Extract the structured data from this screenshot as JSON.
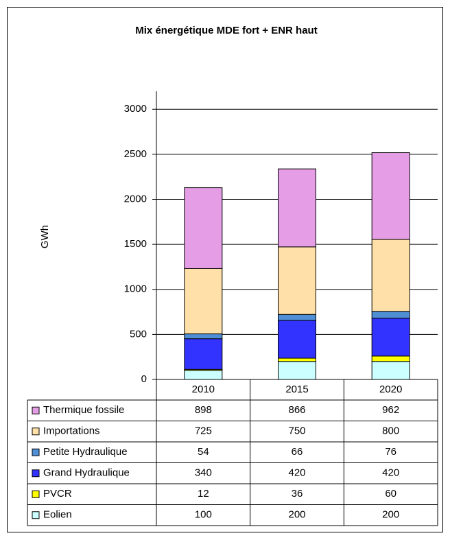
{
  "chart_data": {
    "type": "stacked_bar",
    "title": "Mix énergétique MDE fort + ENR haut",
    "y_label": "GWh",
    "categories": [
      "2010",
      "2015",
      "2020"
    ],
    "series": [
      {
        "name": "Eolien",
        "color": "#ccffff",
        "values": [
          100,
          200,
          200
        ]
      },
      {
        "name": "PVCR",
        "color": "#ffff00",
        "values": [
          12,
          36,
          60
        ]
      },
      {
        "name": "Grand Hydraulique",
        "color": "#3333ff",
        "values": [
          340,
          420,
          420
        ]
      },
      {
        "name": "Petite Hydraulique",
        "color": "#4f8fd6",
        "values": [
          54,
          66,
          76
        ]
      },
      {
        "name": "Importations",
        "color": "#ffe0a8",
        "values": [
          725,
          750,
          800
        ]
      },
      {
        "name": "Thermique fossile",
        "color": "#e59ee6",
        "values": [
          898,
          866,
          962
        ]
      }
    ],
    "ylim": [
      0,
      3200
    ],
    "yticks": [
      0,
      500,
      1000,
      1500,
      2000,
      2500,
      3000
    ],
    "grid": true
  }
}
